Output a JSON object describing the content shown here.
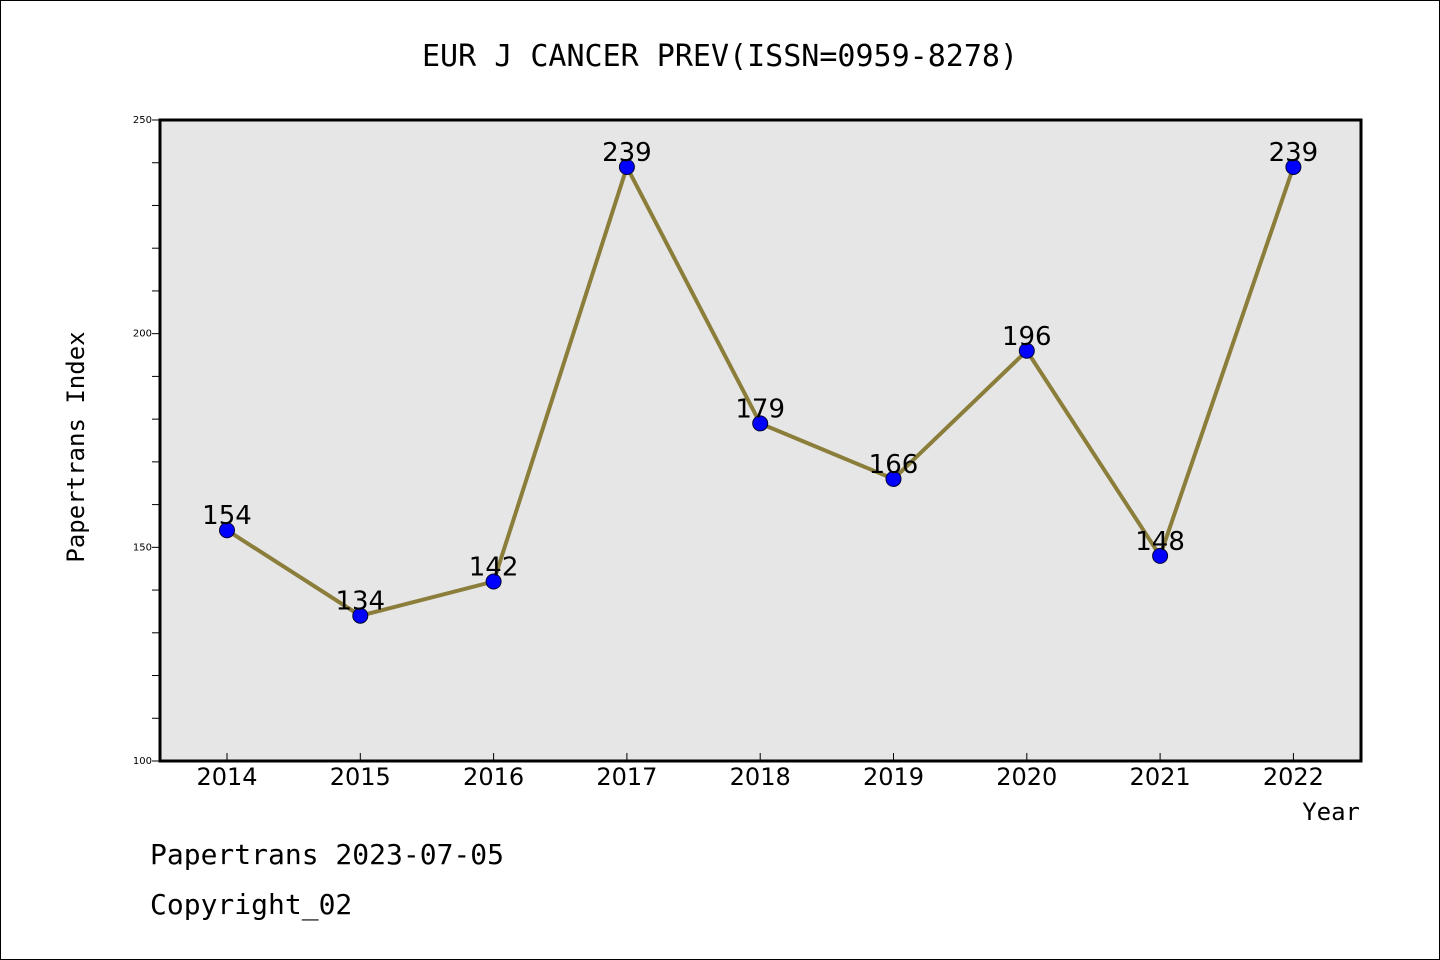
{
  "chart_data": {
    "type": "line",
    "title": "EUR J CANCER PREV(ISSN=0959-8278)",
    "xlabel": "Year",
    "ylabel": "Papertrans Index",
    "categories": [
      "2014",
      "2015",
      "2016",
      "2017",
      "2018",
      "2019",
      "2020",
      "2021",
      "2022"
    ],
    "series": [
      {
        "values": [
          154,
          134,
          142,
          239,
          179,
          166,
          196,
          148,
          239
        ]
      }
    ],
    "data_labels": [
      "154",
      "134",
      "142",
      "239",
      "179",
      "166",
      "196",
      "148",
      "239"
    ],
    "ylim": [
      100,
      250
    ],
    "yticks": [
      "100",
      "150",
      "200",
      "250"
    ],
    "grid": false,
    "colors": {
      "line": "#8B7D3A",
      "marker": "#0000FF",
      "plot_bg": "#E6E6E6"
    }
  },
  "footer": {
    "line1": "Papertrans 2023-07-05",
    "line2": "Copyright_02"
  }
}
